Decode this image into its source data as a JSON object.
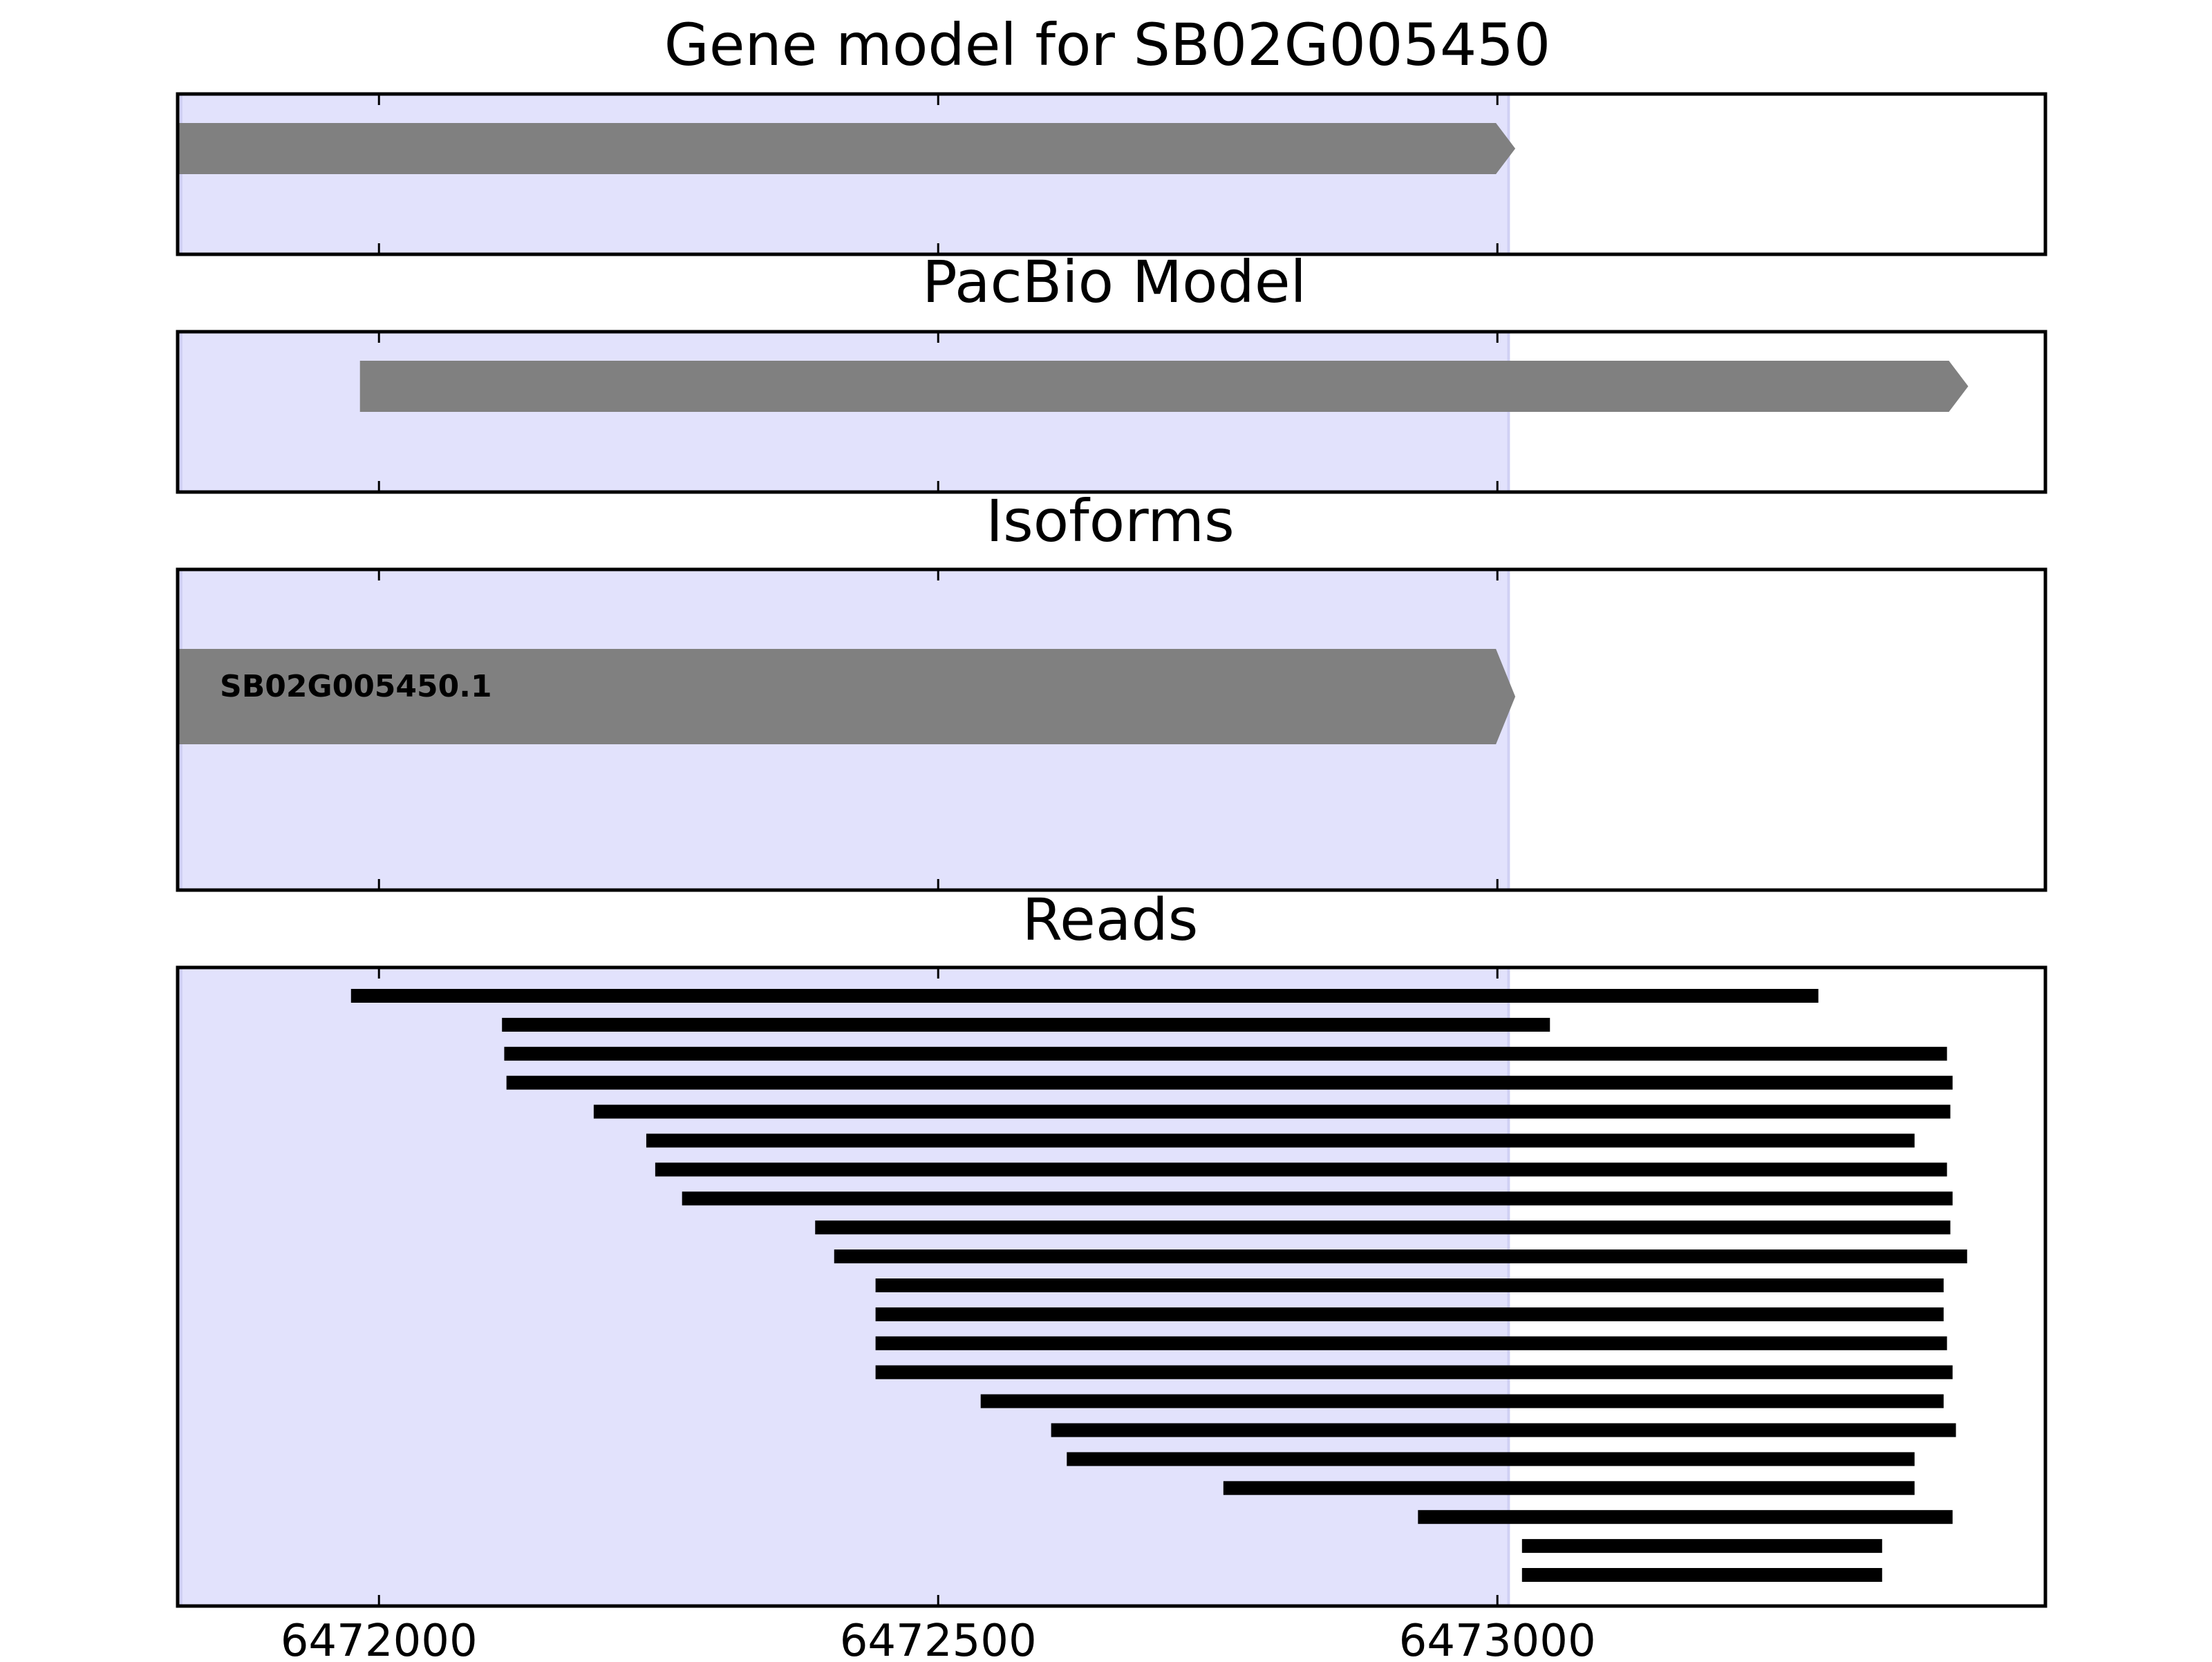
{
  "chart_data": [
    {
      "type": "gene-track",
      "title": "Gene model for SB02G005450",
      "xlim": [
        6471820,
        6473490
      ],
      "highlight": {
        "start": 6471823,
        "end": 6473010,
        "color": "#e2e2fc"
      },
      "feature_color": "#808080",
      "features": [
        {
          "start": 6471820,
          "end": 6473016,
          "strand": "+"
        }
      ],
      "xticks": [
        6472000,
        6472500,
        6473000
      ]
    },
    {
      "type": "gene-track",
      "title": "PacBio Model",
      "xlim": [
        6471820,
        6473490
      ],
      "highlight": {
        "start": 6471823,
        "end": 6473010,
        "color": "#e2e2fc"
      },
      "feature_color": "#808080",
      "features": [
        {
          "start": 6471983,
          "end": 6473421,
          "strand": "+"
        }
      ],
      "xticks": [
        6472000,
        6472500,
        6473000
      ]
    },
    {
      "type": "gene-track",
      "title": "Isoforms",
      "xlim": [
        6471820,
        6473490
      ],
      "highlight": {
        "start": 6471823,
        "end": 6473010,
        "color": "#e2e2fc"
      },
      "feature_color": "#808080",
      "features": [
        {
          "label": "SB02G005450.1",
          "start": 6471820,
          "end": 6473016,
          "strand": "+"
        }
      ],
      "xticks": [
        6472000,
        6472500,
        6473000
      ]
    },
    {
      "type": "reads",
      "title": "Reads",
      "xlim": [
        6471820,
        6473490
      ],
      "highlight": {
        "start": 6471823,
        "end": 6473010,
        "color": "#e2e2fc"
      },
      "read_color": "#000000",
      "reads": [
        [
          6471975,
          6473287
        ],
        [
          6472110,
          6473047
        ],
        [
          6472112,
          6473402
        ],
        [
          6472114,
          6473407
        ],
        [
          6472192,
          6473405
        ],
        [
          6472239,
          6473373
        ],
        [
          6472247,
          6473402
        ],
        [
          6472271,
          6473407
        ],
        [
          6472390,
          6473405
        ],
        [
          6472407,
          6473420
        ],
        [
          6472444,
          6473399
        ],
        [
          6472444,
          6473399
        ],
        [
          6472444,
          6473402
        ],
        [
          6472444,
          6473407
        ],
        [
          6472538,
          6473399
        ],
        [
          6472601,
          6473410
        ],
        [
          6472615,
          6473373
        ],
        [
          6472755,
          6473373
        ],
        [
          6472929,
          6473407
        ],
        [
          6473022,
          6473344
        ],
        [
          6473022,
          6473344
        ]
      ],
      "xticks": [
        6472000,
        6472500,
        6473000
      ],
      "xtick_labels": [
        "6472000",
        "6472500",
        "6473000"
      ]
    }
  ]
}
